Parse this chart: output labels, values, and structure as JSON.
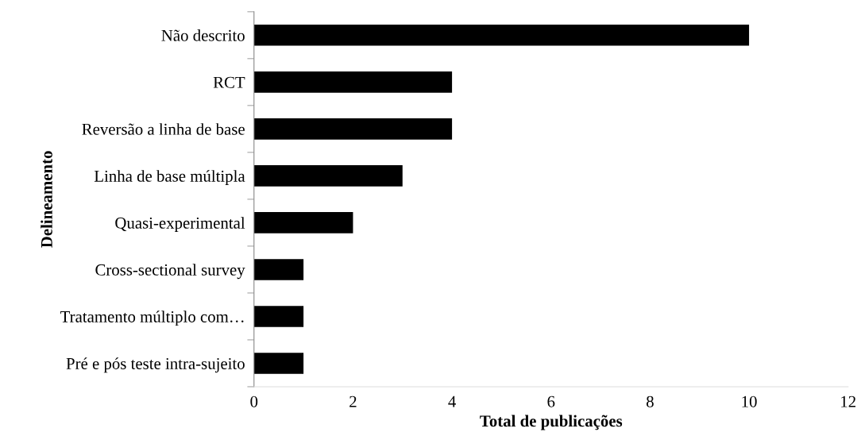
{
  "chart_data": {
    "type": "bar",
    "orientation": "horizontal",
    "categories": [
      "Não descrito",
      "RCT",
      "Reversão a linha de base",
      "Linha de base múltipla",
      "Quasi-experimental",
      "Cross-sectional survey",
      "Tratamento múltiplo com…",
      "Pré e pós teste intra-sujeito"
    ],
    "values": [
      10,
      4,
      4,
      3,
      2,
      1,
      1,
      1
    ],
    "color": "#000000",
    "xlabel": "Total de publicações",
    "ylabel": "Delineamento",
    "xlim": [
      0,
      12
    ],
    "xticks": [
      0,
      2,
      4,
      6,
      8,
      10,
      12
    ],
    "grid": false,
    "legend": false
  }
}
